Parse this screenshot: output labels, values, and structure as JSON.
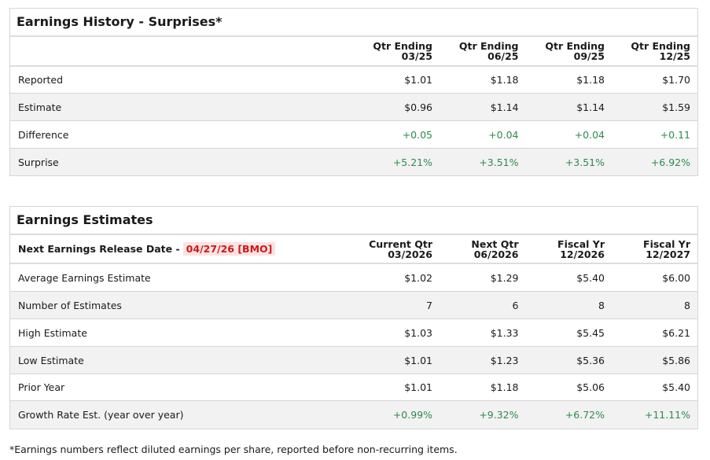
{
  "history": {
    "title": "Earnings History - Surprises*",
    "columns": [
      [
        "Qtr Ending",
        "03/25"
      ],
      [
        "Qtr Ending",
        "06/25"
      ],
      [
        "Qtr Ending",
        "09/25"
      ],
      [
        "Qtr Ending",
        "12/25"
      ]
    ],
    "rows": [
      {
        "label": "Reported",
        "values": [
          "$1.01",
          "$1.18",
          "$1.18",
          "$1.70"
        ],
        "green": false
      },
      {
        "label": "Estimate",
        "values": [
          "$0.96",
          "$1.14",
          "$1.14",
          "$1.59"
        ],
        "green": false
      },
      {
        "label": "Difference",
        "values": [
          "+0.05",
          "+0.04",
          "+0.04",
          "+0.11"
        ],
        "green": true
      },
      {
        "label": "Surprise",
        "values": [
          "+5.21%",
          "+3.51%",
          "+3.51%",
          "+6.92%"
        ],
        "green": true
      }
    ]
  },
  "estimates": {
    "title": "Earnings Estimates",
    "release_label": "Next Earnings Release Date -",
    "release_date": "04/27/26 [BMO]",
    "columns": [
      [
        "Current Qtr",
        "03/2026"
      ],
      [
        "Next Qtr",
        "06/2026"
      ],
      [
        "Fiscal Yr",
        "12/2026"
      ],
      [
        "Fiscal Yr",
        "12/2027"
      ]
    ],
    "rows": [
      {
        "label": "Average Earnings Estimate",
        "values": [
          "$1.02",
          "$1.29",
          "$5.40",
          "$6.00"
        ],
        "green": false
      },
      {
        "label": "Number of Estimates",
        "values": [
          "7",
          "6",
          "8",
          "8"
        ],
        "green": false
      },
      {
        "label": "High Estimate",
        "values": [
          "$1.03",
          "$1.33",
          "$5.45",
          "$6.21"
        ],
        "green": false
      },
      {
        "label": "Low Estimate",
        "values": [
          "$1.01",
          "$1.23",
          "$5.36",
          "$5.86"
        ],
        "green": false
      },
      {
        "label": "Prior Year",
        "values": [
          "$1.01",
          "$1.18",
          "$5.06",
          "$5.40"
        ],
        "green": false
      },
      {
        "label": "Growth Rate Est. (year over year)",
        "values": [
          "+0.99%",
          "+9.32%",
          "+6.72%",
          "+11.11%"
        ],
        "green": true
      }
    ]
  },
  "footnote": "*Earnings numbers reflect diluted earnings per share, reported before non-recurring items.",
  "colors": {
    "positive": "#2e8a4e",
    "release_badge_text": "#d01818",
    "release_badge_bg": "#fde3e3"
  }
}
